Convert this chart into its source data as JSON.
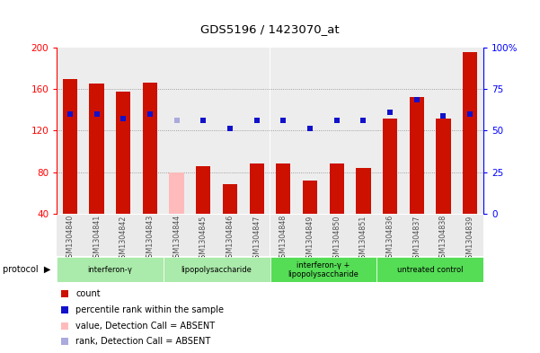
{
  "title": "GDS5196 / 1423070_at",
  "samples": [
    "GSM1304840",
    "GSM1304841",
    "GSM1304842",
    "GSM1304843",
    "GSM1304844",
    "GSM1304845",
    "GSM1304846",
    "GSM1304847",
    "GSM1304848",
    "GSM1304849",
    "GSM1304850",
    "GSM1304851",
    "GSM1304836",
    "GSM1304837",
    "GSM1304838",
    "GSM1304839"
  ],
  "count_values": [
    170,
    165,
    158,
    166,
    80,
    86,
    68,
    88,
    88,
    72,
    88,
    84,
    132,
    152,
    132,
    196
  ],
  "count_absent": [
    false,
    false,
    false,
    false,
    true,
    false,
    false,
    false,
    false,
    false,
    false,
    false,
    false,
    false,
    false,
    false
  ],
  "rank_values": [
    136,
    136,
    132,
    136,
    130,
    130,
    122,
    130,
    130,
    122,
    130,
    130,
    138,
    150,
    134,
    136
  ],
  "rank_absent": [
    false,
    false,
    false,
    false,
    true,
    false,
    false,
    false,
    false,
    false,
    false,
    false,
    false,
    false,
    false,
    false
  ],
  "ylim_left": [
    40,
    200
  ],
  "ylim_right": [
    0,
    100
  ],
  "yticks_left": [
    40,
    80,
    120,
    160,
    200
  ],
  "yticks_right": [
    0,
    25,
    50,
    75,
    100
  ],
  "ytick_labels_right": [
    "0",
    "25",
    "50",
    "75",
    "100%"
  ],
  "protocols": [
    {
      "label": "interferon-γ",
      "start": 0,
      "end": 4,
      "color": "#aaeaaa"
    },
    {
      "label": "lipopolysaccharide",
      "start": 4,
      "end": 8,
      "color": "#aaeaaa"
    },
    {
      "label": "interferon-γ +\nlipopolysaccharide",
      "start": 8,
      "end": 12,
      "color": "#55dd55"
    },
    {
      "label": "untreated control",
      "start": 12,
      "end": 16,
      "color": "#55dd55"
    }
  ],
  "bar_color_normal": "#cc1100",
  "bar_color_absent": "#ffbbbb",
  "rank_color_normal": "#1111cc",
  "rank_color_absent": "#aaaadd",
  "rank_marker_size": 5,
  "bg_color_plot": "#ffffff",
  "bg_color_xtick": "#cccccc",
  "bar_width": 0.55
}
